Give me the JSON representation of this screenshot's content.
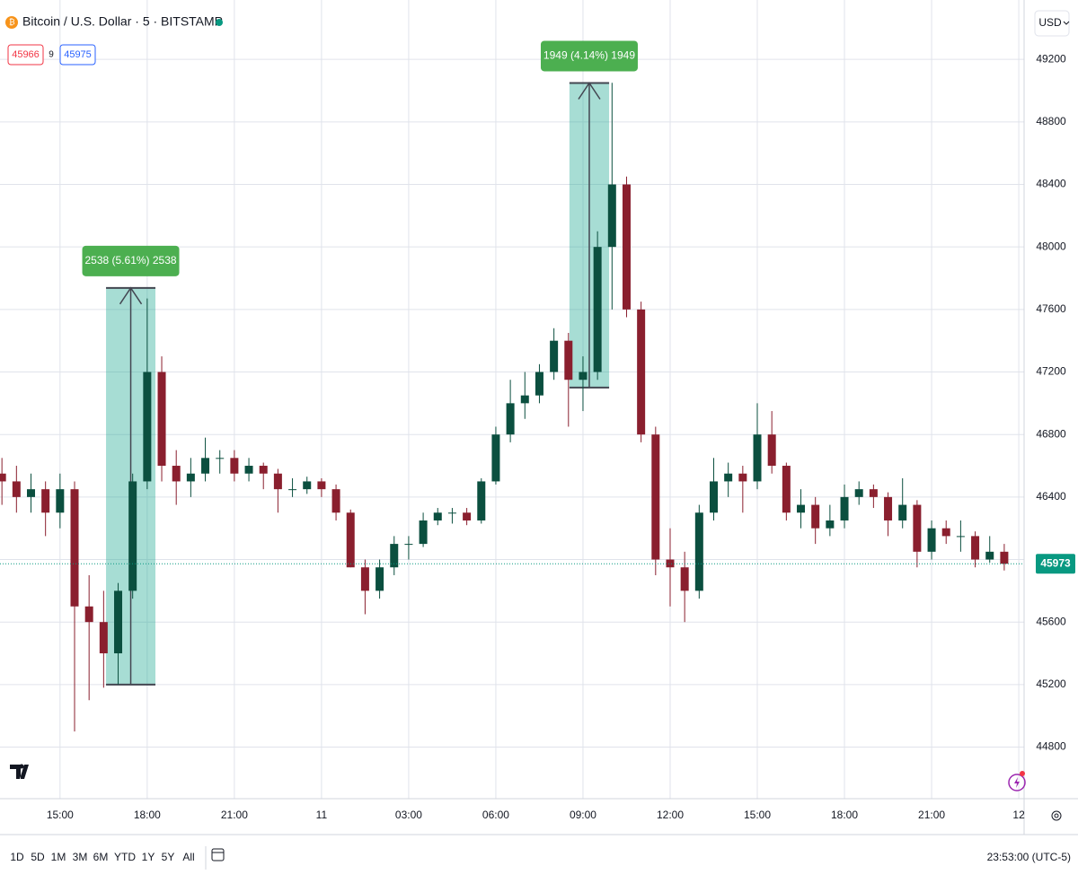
{
  "chart_data": {
    "type": "candlestick",
    "title": "Bitcoin / U.S. Dollar · 5 · BITSTAMP",
    "bid": 45966,
    "spread": 9,
    "ask": 45975,
    "currency": "USD",
    "last_price": 45973,
    "clock": "23:53:00 (UTC-5)",
    "range_buttons": [
      "1D",
      "5D",
      "1M",
      "3M",
      "6M",
      "YTD",
      "1Y",
      "5Y",
      "All"
    ],
    "up_color": "#0b4f3f",
    "down_color": "#8a1f2e",
    "grid": true,
    "xlim": [
      776,
      2891
    ],
    "ylim": [
      44470,
      49580
    ],
    "yticks": [
      44800,
      45200,
      45600,
      46000,
      46400,
      46800,
      47200,
      47600,
      48000,
      48400,
      48800,
      49200
    ],
    "xticks": [
      {
        "value": 900,
        "label": "15:00"
      },
      {
        "value": 1080,
        "label": "18:00"
      },
      {
        "value": 1260,
        "label": "21:00"
      },
      {
        "value": 1440,
        "label": "11"
      },
      {
        "value": 1620,
        "label": "03:00"
      },
      {
        "value": 1800,
        "label": "06:00"
      },
      {
        "value": 1980,
        "label": "09:00"
      },
      {
        "value": 2160,
        "label": "12:00"
      },
      {
        "value": 2340,
        "label": "15:00"
      },
      {
        "value": 2520,
        "label": "18:00"
      },
      {
        "value": 2700,
        "label": "21:00"
      },
      {
        "value": 2880,
        "label": "12"
      }
    ],
    "x": [
      780,
      810,
      840,
      870,
      900,
      930,
      960,
      990,
      1020,
      1050,
      1080,
      1110,
      1140,
      1170,
      1200,
      1230,
      1260,
      1290,
      1320,
      1350,
      1380,
      1410,
      1440,
      1470,
      1500,
      1530,
      1560,
      1590,
      1620,
      1650,
      1680,
      1710,
      1740,
      1770,
      1800,
      1830,
      1860,
      1890,
      1920,
      1950,
      1980,
      2010,
      2040,
      2070,
      2100,
      2130,
      2160,
      2190,
      2220,
      2250,
      2280,
      2310,
      2340,
      2370,
      2400,
      2430,
      2460,
      2490,
      2520,
      2550,
      2580,
      2610,
      2640,
      2670,
      2700,
      2730,
      2760,
      2790,
      2820,
      2850
    ],
    "ohlc": [
      [
        46550,
        46650,
        46350,
        46500
      ],
      [
        46500,
        46600,
        46300,
        46400
      ],
      [
        46400,
        46550,
        46300,
        46450
      ],
      [
        46450,
        46500,
        46150,
        46300
      ],
      [
        46300,
        46550,
        46200,
        46450
      ],
      [
        46450,
        46500,
        44900,
        45700
      ],
      [
        45700,
        45900,
        45100,
        45600
      ],
      [
        45600,
        45800,
        45180,
        45400
      ],
      [
        45400,
        45850,
        45200,
        45800
      ],
      [
        45800,
        46550,
        45750,
        46500
      ],
      [
        46500,
        47670,
        46450,
        47200
      ],
      [
        47200,
        47300,
        46500,
        46600
      ],
      [
        46600,
        46700,
        46350,
        46500
      ],
      [
        46500,
        46650,
        46400,
        46550
      ],
      [
        46550,
        46780,
        46500,
        46650
      ],
      [
        46650,
        46700,
        46550,
        46650
      ],
      [
        46650,
        46700,
        46500,
        46550
      ],
      [
        46550,
        46650,
        46500,
        46600
      ],
      [
        46600,
        46620,
        46450,
        46550
      ],
      [
        46550,
        46580,
        46300,
        46450
      ],
      [
        46450,
        46520,
        46400,
        46450
      ],
      [
        46450,
        46530,
        46420,
        46500
      ],
      [
        46500,
        46520,
        46400,
        46450
      ],
      [
        46450,
        46480,
        46250,
        46300
      ],
      [
        46300,
        46320,
        45950,
        45950
      ],
      [
        45950,
        46000,
        45650,
        45800
      ],
      [
        45800,
        46000,
        45750,
        45950
      ],
      [
        45950,
        46150,
        45900,
        46100
      ],
      [
        46100,
        46150,
        46000,
        46100
      ],
      [
        46100,
        46300,
        46080,
        46250
      ],
      [
        46250,
        46330,
        46220,
        46300
      ],
      [
        46300,
        46330,
        46230,
        46300
      ],
      [
        46300,
        46330,
        46220,
        46250
      ],
      [
        46250,
        46520,
        46230,
        46500
      ],
      [
        46500,
        46850,
        46480,
        46800
      ],
      [
        46800,
        47150,
        46750,
        47000
      ],
      [
        47000,
        47200,
        46900,
        47050
      ],
      [
        47050,
        47250,
        47000,
        47200
      ],
      [
        47200,
        47480,
        47150,
        47400
      ],
      [
        47400,
        47450,
        46850,
        47150
      ],
      [
        47150,
        47300,
        46950,
        47200
      ],
      [
        47200,
        48100,
        47150,
        48000
      ],
      [
        48000,
        49050,
        47600,
        48400
      ],
      [
        48400,
        48450,
        47550,
        47600
      ],
      [
        47600,
        47650,
        46750,
        46800
      ],
      [
        46800,
        46850,
        45900,
        46000
      ],
      [
        46000,
        46200,
        45700,
        45950
      ],
      [
        45950,
        46050,
        45600,
        45800
      ],
      [
        45800,
        46350,
        45750,
        46300
      ],
      [
        46300,
        46650,
        46250,
        46500
      ],
      [
        46500,
        46620,
        46400,
        46550
      ],
      [
        46550,
        46600,
        46300,
        46500
      ],
      [
        46500,
        47000,
        46450,
        46800
      ],
      [
        46800,
        46950,
        46550,
        46600
      ],
      [
        46600,
        46620,
        46250,
        46300
      ],
      [
        46300,
        46450,
        46200,
        46350
      ],
      [
        46350,
        46400,
        46100,
        46200
      ],
      [
        46200,
        46350,
        46150,
        46250
      ],
      [
        46250,
        46480,
        46200,
        46400
      ],
      [
        46400,
        46500,
        46350,
        46450
      ],
      [
        46450,
        46480,
        46330,
        46400
      ],
      [
        46400,
        46430,
        46150,
        46250
      ],
      [
        46250,
        46520,
        46200,
        46350
      ],
      [
        46350,
        46380,
        45950,
        46050
      ],
      [
        46050,
        46250,
        46000,
        46200
      ],
      [
        46200,
        46250,
        46100,
        46150
      ],
      [
        46150,
        46250,
        46050,
        46150
      ],
      [
        46150,
        46180,
        45950,
        46000
      ],
      [
        46000,
        46150,
        45980,
        46050
      ],
      [
        46050,
        46100,
        45930,
        45973
      ]
    ],
    "ranges": [
      {
        "label": "2538 (5.61%) 2538",
        "start": 995,
        "end": 1097,
        "low": 45200,
        "high": 47738
      },
      {
        "label": "1949 (4.14%) 1949",
        "start": 1952,
        "end": 2034,
        "low": 47100,
        "high": 49049
      }
    ]
  }
}
